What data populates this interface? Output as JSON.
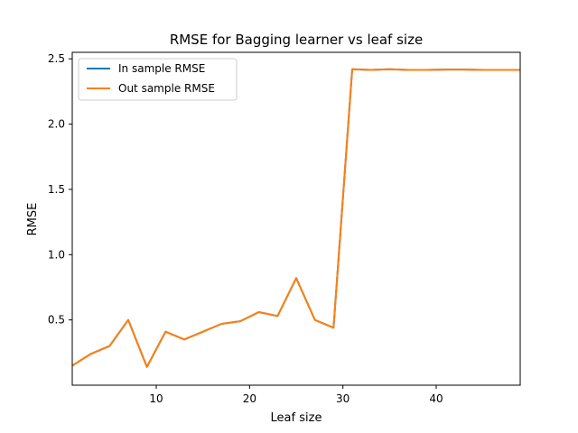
{
  "chart_data": {
    "type": "line",
    "title": "RMSE for Bagging learner vs leaf size",
    "xlabel": "Leaf size",
    "ylabel": "RMSE",
    "xlim": [
      1,
      49
    ],
    "ylim": [
      0.0,
      2.55
    ],
    "xticks": [
      10,
      20,
      30,
      40
    ],
    "yticks": [
      0.5,
      1.0,
      1.5,
      2.0,
      2.5
    ],
    "xtick_labels": [
      "10",
      "20",
      "30",
      "40"
    ],
    "ytick_labels": [
      "0.5",
      "1.0",
      "1.5",
      "2.0",
      "2.5"
    ],
    "grid": false,
    "legend": "top-left",
    "x": [
      1,
      3,
      5,
      7,
      9,
      11,
      13,
      15,
      17,
      19,
      21,
      23,
      25,
      27,
      29,
      31,
      33,
      35,
      37,
      39,
      41,
      43,
      45,
      47,
      49
    ],
    "series": [
      {
        "name": "In sample RMSE",
        "color": "#1f77b4",
        "values": [
          0.15,
          0.24,
          0.3,
          0.5,
          0.14,
          0.41,
          0.35,
          0.41,
          0.47,
          0.49,
          0.56,
          0.53,
          0.82,
          0.5,
          0.44,
          2.42,
          2.415,
          2.42,
          2.415,
          2.415,
          2.418,
          2.418,
          2.415,
          2.415,
          2.415
        ]
      },
      {
        "name": "Out sample RMSE",
        "color": "#ff7f0e",
        "values": [
          0.15,
          0.24,
          0.3,
          0.5,
          0.14,
          0.41,
          0.35,
          0.41,
          0.47,
          0.49,
          0.56,
          0.53,
          0.82,
          0.5,
          0.44,
          2.42,
          2.415,
          2.42,
          2.415,
          2.415,
          2.418,
          2.418,
          2.415,
          2.415,
          2.415
        ]
      }
    ]
  }
}
